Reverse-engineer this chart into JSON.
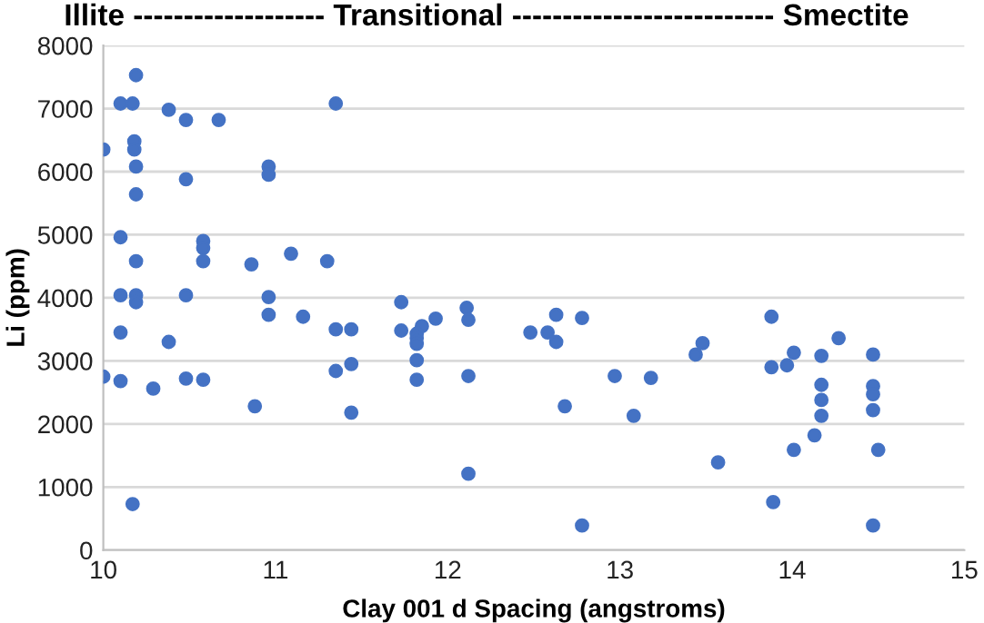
{
  "chart_data": {
    "type": "scatter",
    "title": "Illite ------------------- Transitional -------------------------- Smectite",
    "xlabel": "Clay 001 d Spacing (angstroms)",
    "ylabel": "Li (ppm)",
    "series": [
      {
        "color": "#4472c4",
        "x": [
          10.0,
          10.1,
          10.17,
          10.19,
          10.38,
          10.48,
          10.67,
          11.35,
          10.18,
          10.18,
          10.19,
          10.48,
          10.19,
          10.96,
          10.96,
          10.1,
          10.58,
          10.58,
          10.58,
          10.19,
          10.86,
          11.09,
          11.3,
          10.1,
          10.19,
          10.19,
          10.48,
          10.96,
          10.96,
          11.16,
          11.73,
          12.11,
          10.1,
          10.38,
          11.35,
          11.44,
          11.73,
          11.85,
          11.93,
          12.12,
          11.82,
          11.82,
          11.82,
          11.82,
          11.82,
          11.35,
          11.44,
          10.0,
          10.1,
          10.29,
          10.48,
          10.58,
          12.12,
          10.88,
          11.44,
          12.12,
          10.17,
          12.48,
          12.58,
          12.63,
          12.63,
          12.78,
          12.68,
          12.97,
          13.08,
          13.18,
          12.78,
          13.44,
          13.48,
          13.57,
          13.88,
          13.88,
          13.97,
          14.01,
          13.89,
          14.01,
          14.17,
          14.27,
          14.47,
          14.17,
          14.17,
          14.17,
          14.13,
          14.47,
          14.47,
          14.47,
          14.5,
          14.47
        ],
        "values": [
          6350,
          7080,
          7080,
          7530,
          6980,
          6820,
          6820,
          7080,
          6480,
          6350,
          6080,
          5880,
          5640,
          6080,
          5950,
          4960,
          4900,
          4790,
          4580,
          4580,
          4530,
          4700,
          4580,
          4040,
          4040,
          3930,
          4040,
          4010,
          3730,
          3700,
          3930,
          3840,
          3450,
          3300,
          3500,
          3500,
          3480,
          3550,
          3670,
          3650,
          3430,
          3360,
          3270,
          3010,
          2700,
          2840,
          2950,
          2750,
          2680,
          2560,
          2720,
          2700,
          2760,
          2280,
          2180,
          1210,
          730,
          3450,
          3450,
          3730,
          3300,
          3680,
          2280,
          2760,
          2130,
          2730,
          390,
          3100,
          3280,
          1390,
          3700,
          2900,
          2930,
          3130,
          760,
          1590,
          3080,
          3360,
          3100,
          2620,
          2380,
          2130,
          1820,
          2600,
          2470,
          2220,
          1590,
          390
        ]
      }
    ],
    "xlim": [
      10,
      15
    ],
    "xticks": [
      10,
      11,
      12,
      13,
      14,
      15
    ],
    "ylim": [
      0,
      8000
    ],
    "yticks": [
      0,
      1000,
      2000,
      3000,
      4000,
      5000,
      6000,
      7000,
      8000
    ],
    "grid": "y",
    "marker": "circle"
  }
}
